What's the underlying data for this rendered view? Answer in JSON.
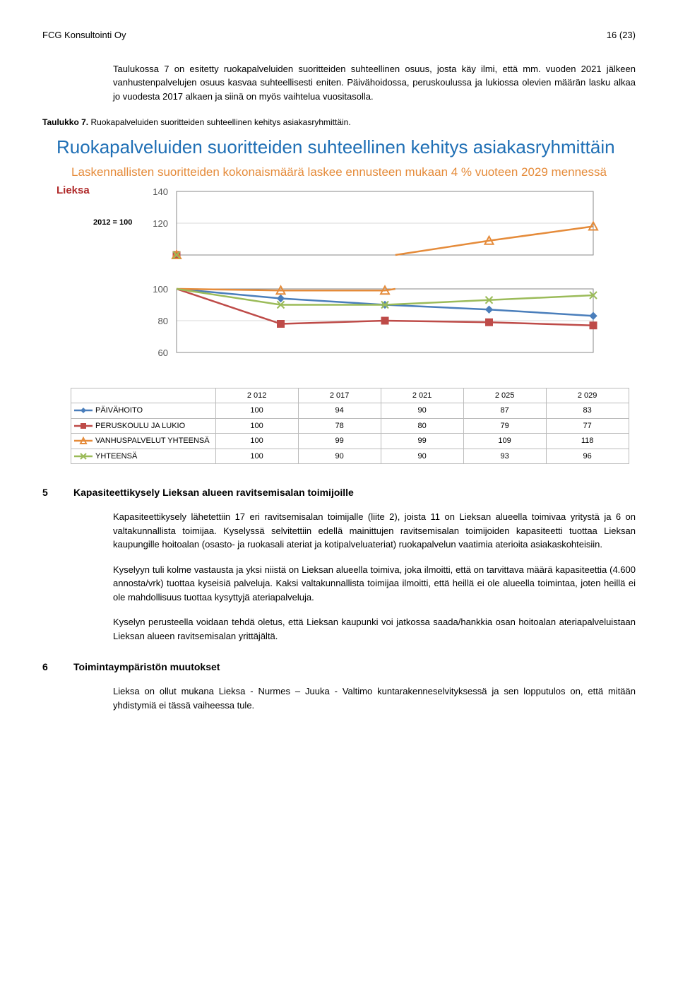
{
  "header": {
    "left": "FCG Konsultointi Oy",
    "right": "16 (23)"
  },
  "intro": "Taulukossa 7 on esitetty ruokapalveluiden suoritteiden suhteellinen osuus, josta käy ilmi, että mm. vuoden 2021 jälkeen vanhustenpalvelujen osuus kasvaa suhteellisesti eniten. Päivähoidossa, peruskoulussa ja lukiossa olevien määrän lasku alkaa jo vuodesta 2017 alkaen ja siinä on myös vaihtelua vuositasolla.",
  "taulukko": {
    "label": "Taulukko 7.",
    "text": "Ruokapalveluiden suoritteiden suhteellinen kehitys asiakasryhmittäin."
  },
  "chart": {
    "title": "Ruokapalveluiden suoritteiden suhteellinen kehitys asiakasryhmittäin",
    "subtitle": "Laskennallisten suoritteiden kokonaismäärä laskee ennusteen mukaan 4 % vuoteen 2029 mennessä",
    "lieksa": "Lieksa",
    "index_label": "2012 = 100",
    "x_categories": [
      "2 012",
      "2 017",
      "2 021",
      "2 025",
      "2 029"
    ],
    "ylim": [
      60,
      140
    ],
    "ytick_step": 20,
    "yticks": [
      60,
      80,
      100,
      120,
      140
    ],
    "grid_color": "#d9d9d9",
    "axis_color": "#888888",
    "series": [
      {
        "name": "PÄIVÄHOITO",
        "color": "#4a7ebb",
        "marker": "diamond",
        "values": [
          100,
          94,
          90,
          87,
          83
        ]
      },
      {
        "name": "PERUSKOULU JA LUKIO",
        "color": "#be4b48",
        "marker": "square",
        "values": [
          100,
          78,
          80,
          79,
          77
        ]
      },
      {
        "name": "VANHUSPALVELUT YHTEENSÄ",
        "color": "#e58b3a",
        "marker": "triangle",
        "values": [
          100,
          99,
          99,
          109,
          118
        ]
      },
      {
        "name": "YHTEENSÄ",
        "color": "#9bbb59",
        "marker": "x",
        "values": [
          100,
          90,
          90,
          93,
          96
        ]
      }
    ]
  },
  "section5": {
    "num": "5",
    "title": "Kapasiteettikysely Lieksan alueen ravitsemisalan toimijoille",
    "p1": "Kapasiteettikysely lähetettiin 17 eri ravitsemisalan toimijalle (liite 2), joista 11 on Lieksan alueella toimivaa yritystä ja 6 on valtakunnallista toimijaa. Kyselyssä selvitettiin edellä mainittujen ravitsemisalan toimijoiden kapasiteetti tuottaa Lieksan kaupungille hoitoalan (osasto- ja ruokasali ateriat ja kotipalveluateriat) ruokapalvelun vaatimia aterioita asiakaskohteisiin.",
    "p2": "Kyselyyn tuli kolme vastausta ja yksi niistä on Lieksan alueella toimiva, joka ilmoitti, että on tarvittava määrä kapasiteettia (4.600 annosta/vrk) tuottaa kyseisiä palveluja. Kaksi valtakunnallista toimijaa ilmoitti, että heillä ei ole alueella toimintaa, joten heillä ei ole mahdollisuus tuottaa kysyttyjä ateriapalveluja.",
    "p3": "Kyselyn perusteella voidaan tehdä oletus, että Lieksan kaupunki voi jatkossa saada/hankkia osan hoitoalan ateriapalveluistaan Lieksan alueen ravitsemisalan yrittäjältä."
  },
  "section6": {
    "num": "6",
    "title": "Toimintaympäristön muutokset",
    "p1": "Lieksa on ollut mukana Lieksa - Nurmes – Juuka - Valtimo kuntarakenneselvityksessä ja sen lopputulos on, että mitään yhdistymiä ei tässä vaiheessa tule."
  }
}
